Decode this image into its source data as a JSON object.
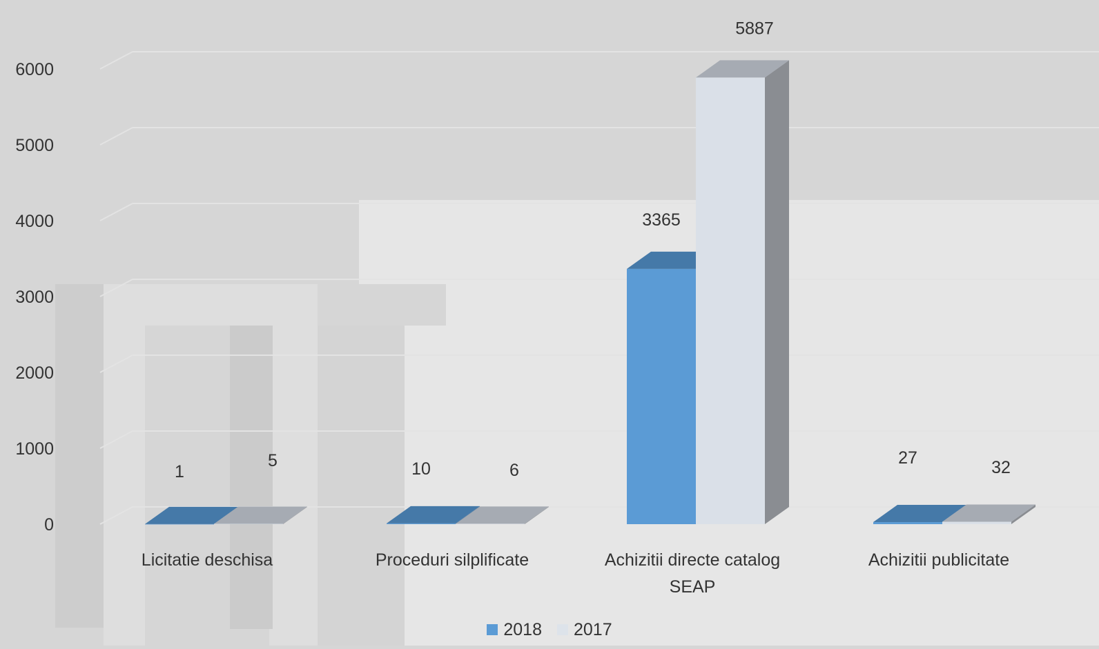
{
  "chart_data": {
    "type": "bar",
    "categories": [
      "Licitatie deschisa",
      "Proceduri silplificate",
      "Achizitii directe catalog SEAP",
      "Achizitii publicitate"
    ],
    "series": [
      {
        "name": "2018",
        "values": [
          1,
          10,
          3365,
          27
        ],
        "color": "#5b9bd5"
      },
      {
        "name": "2017",
        "values": [
          5,
          6,
          5887,
          32
        ],
        "color": "#d6dce4"
      }
    ],
    "data_labels": {
      "2018": [
        "1",
        "10",
        "3365",
        "27"
      ],
      "2017": [
        "5",
        "6",
        "5887",
        "32"
      ]
    },
    "ylim": [
      0,
      6000
    ],
    "yticks": [
      "0",
      "1000",
      "2000",
      "3000",
      "4000",
      "5000",
      "6000"
    ],
    "grid": true,
    "legend_position": "bottom",
    "style": "3d-column"
  }
}
